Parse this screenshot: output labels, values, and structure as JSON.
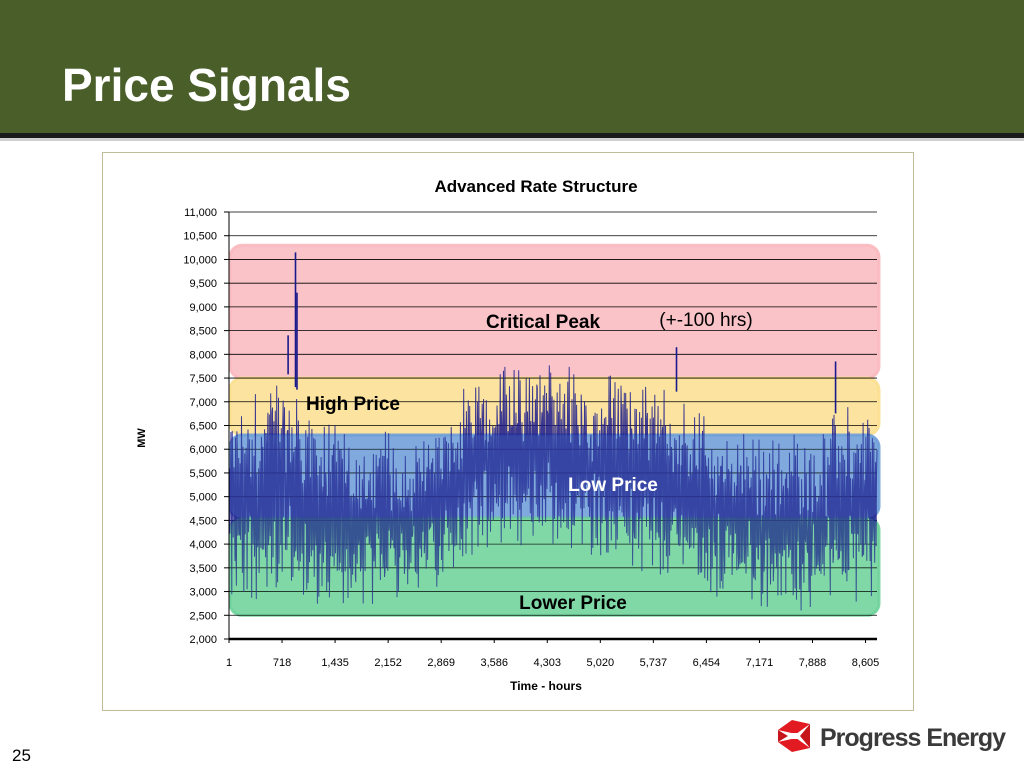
{
  "slide": {
    "title": "Price Signals",
    "page_number": "25",
    "logo_text": "Progress Energy",
    "header_color": "#4a5e2a"
  },
  "chart_data": {
    "type": "line",
    "title": "Advanced Rate Structure",
    "xlabel": "Time - hours",
    "ylabel": "MW",
    "ylim": [
      2000,
      11000
    ],
    "xlim": [
      1,
      8760
    ],
    "yticks": [
      2000,
      2500,
      3000,
      3500,
      4000,
      4500,
      5000,
      5500,
      6000,
      6500,
      7000,
      7500,
      8000,
      8500,
      9000,
      9500,
      10000,
      10500,
      11000
    ],
    "ytick_labels": [
      "2,000",
      "2,500",
      "3,000",
      "3,500",
      "4,000",
      "4,500",
      "5,000",
      "5,500",
      "6,000",
      "6,500",
      "7,000",
      "7,500",
      "8,000",
      "8,500",
      "9,000",
      "9,500",
      "10,000",
      "10,500",
      "11,000"
    ],
    "xticks": [
      1,
      718,
      1435,
      2152,
      2869,
      3586,
      4303,
      5020,
      5737,
      6454,
      7171,
      7888,
      8605
    ],
    "xtick_labels": [
      "1",
      "718",
      "1,435",
      "2,152",
      "2,869",
      "3,586",
      "4,303",
      "5,020",
      "5,737",
      "6,454",
      "7,171",
      "7,888",
      "8,605"
    ],
    "grid": true,
    "series_color": "#1a1a8c",
    "price_bands": [
      {
        "label": "Critical Peak",
        "y_range": [
          7500,
          10300
        ],
        "color": "#f9b9be",
        "note": "(+-100 hrs)"
      },
      {
        "label": "High Price",
        "y_range": [
          6300,
          7500
        ],
        "color": "#fbdf8f",
        "note": ""
      },
      {
        "label": "Low Price",
        "y_range": [
          4550,
          6300
        ],
        "color": "#6f9fd8",
        "note": ""
      },
      {
        "label": "Lower Price",
        "y_range": [
          2500,
          4550
        ],
        "color": "#6fd39b",
        "note": ""
      }
    ],
    "notable_peaks": [
      {
        "x": 900,
        "y": 10150
      },
      {
        "x": 920,
        "y": 9300
      },
      {
        "x": 800,
        "y": 8400
      },
      {
        "x": 6050,
        "y": 8150
      },
      {
        "x": 8200,
        "y": 7850
      }
    ],
    "envelope": [
      {
        "x": 1,
        "low": 2600,
        "high": 6900
      },
      {
        "x": 400,
        "low": 2700,
        "high": 7200
      },
      {
        "x": 718,
        "low": 2800,
        "high": 7800
      },
      {
        "x": 1200,
        "low": 2600,
        "high": 6500
      },
      {
        "x": 1435,
        "low": 2500,
        "high": 6600
      },
      {
        "x": 1800,
        "low": 2700,
        "high": 6100
      },
      {
        "x": 2152,
        "low": 2800,
        "high": 6400
      },
      {
        "x": 2500,
        "low": 2900,
        "high": 6200
      },
      {
        "x": 2869,
        "low": 3100,
        "high": 6600
      },
      {
        "x": 3300,
        "low": 3800,
        "high": 7600
      },
      {
        "x": 3586,
        "low": 3700,
        "high": 7700
      },
      {
        "x": 4000,
        "low": 3900,
        "high": 7800
      },
      {
        "x": 4303,
        "low": 4000,
        "high": 7900
      },
      {
        "x": 4700,
        "low": 3900,
        "high": 7700
      },
      {
        "x": 5020,
        "low": 3700,
        "high": 7600
      },
      {
        "x": 5500,
        "low": 3500,
        "high": 7700
      },
      {
        "x": 5737,
        "low": 3300,
        "high": 7300
      },
      {
        "x": 6100,
        "low": 3000,
        "high": 7200
      },
      {
        "x": 6454,
        "low": 2900,
        "high": 6700
      },
      {
        "x": 6800,
        "low": 2800,
        "high": 6400
      },
      {
        "x": 7171,
        "low": 2700,
        "high": 6200
      },
      {
        "x": 7500,
        "low": 2600,
        "high": 6400
      },
      {
        "x": 7888,
        "low": 2600,
        "high": 6300
      },
      {
        "x": 8300,
        "low": 2700,
        "high": 6900
      },
      {
        "x": 8605,
        "low": 2800,
        "high": 7000
      },
      {
        "x": 8760,
        "low": 2700,
        "high": 6500
      }
    ]
  }
}
